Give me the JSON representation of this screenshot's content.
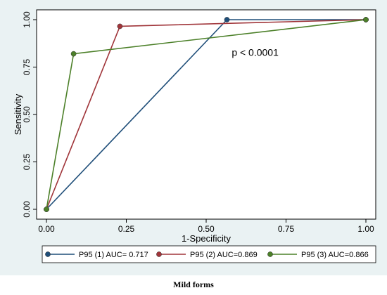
{
  "caption": "Mild forms",
  "chart_data": {
    "type": "line",
    "xlabel": "1-Specificity",
    "ylabel": "Sensitivity",
    "xlim": [
      0,
      1
    ],
    "ylim": [
      0,
      1
    ],
    "xticks": [
      "0.00",
      "0.25",
      "0.50",
      "0.75",
      "1.00"
    ],
    "yticks": [
      "0.00",
      "0.25",
      "0.50",
      "0.75",
      "1.00"
    ],
    "grid": false,
    "legend_position": "bottom",
    "annotation": {
      "text": "p < 0.0001",
      "x": 0.58,
      "y": 0.81
    },
    "series": [
      {
        "name": "P95 (1) AUC= 0.717",
        "color": "#1f4e79",
        "points": [
          [
            0,
            0
          ],
          [
            0.565,
            1.0
          ],
          [
            1.0,
            1.0
          ]
        ]
      },
      {
        "name": "P95 (2) AUC=0.869",
        "color": "#a0353a",
        "points": [
          [
            0,
            0
          ],
          [
            0.23,
            0.965
          ],
          [
            1.0,
            1.0
          ]
        ]
      },
      {
        "name": "P95 (3) AUC=0.866",
        "color": "#4c8029",
        "points": [
          [
            0,
            0
          ],
          [
            0.085,
            0.82
          ],
          [
            1.0,
            1.0
          ]
        ]
      }
    ]
  }
}
